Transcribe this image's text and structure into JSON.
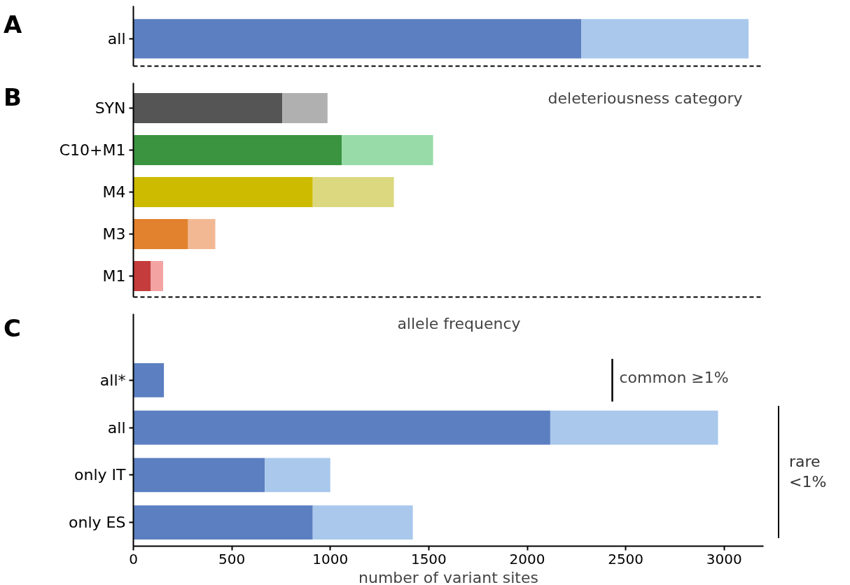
{
  "chart_data": [
    {
      "type": "bar",
      "orientation": "horizontal",
      "stacked": true,
      "title": "A",
      "categories": [
        "all"
      ],
      "xlim": [
        0,
        3200
      ],
      "tick_labels": "y",
      "grid": false,
      "series": [
        {
          "colors": [
            "#5b7fc1"
          ],
          "values": [
            2275
          ]
        },
        {
          "colors": [
            "#a9c8ec"
          ],
          "values": [
            849
          ]
        }
      ]
    },
    {
      "type": "bar",
      "orientation": "horizontal",
      "stacked": true,
      "title": "B",
      "annotations": [
        "deleteriousness category"
      ],
      "categories": [
        "SYN",
        "C10+M1",
        "M4",
        "M3",
        "M1"
      ],
      "xlim": [
        0,
        3200
      ],
      "tick_labels": "y",
      "grid": false,
      "series": [
        {
          "colors": [
            "#555555",
            "#3a9440",
            "#cdbb00",
            "#e2822e",
            "#c43c3c"
          ],
          "values": [
            756,
            1058,
            911,
            278,
            89
          ]
        },
        {
          "colors": [
            "#b0b0b0",
            "#98dba8",
            "#dcd880",
            "#f2b894",
            "#f4a3a3"
          ],
          "values": [
            230,
            464,
            412,
            138,
            62
          ]
        }
      ]
    },
    {
      "type": "bar",
      "orientation": "horizontal",
      "stacked": true,
      "title": "C",
      "annotations": [
        "allele frequency",
        "common ≥1%",
        "rare\n<1%"
      ],
      "categories": [
        "all*",
        "all",
        "only IT",
        "only ES"
      ],
      "xlim": [
        0,
        3200
      ],
      "xticks": [
        0,
        500,
        1000,
        1500,
        2000,
        2500,
        3000
      ],
      "xlabel": "number of variant sites",
      "grid": false,
      "series": [
        {
          "colors": [
            "#5b7fc1",
            "#5b7fc1",
            "#5b7fc1",
            "#5b7fc1"
          ],
          "values": [
            155,
            2117,
            667,
            911
          ]
        },
        {
          "colors": [
            "#a9c8ec",
            "#a9c8ec",
            "#a9c8ec",
            "#a9c8ec"
          ],
          "values": [
            null,
            852,
            333,
            508
          ]
        }
      ]
    }
  ]
}
